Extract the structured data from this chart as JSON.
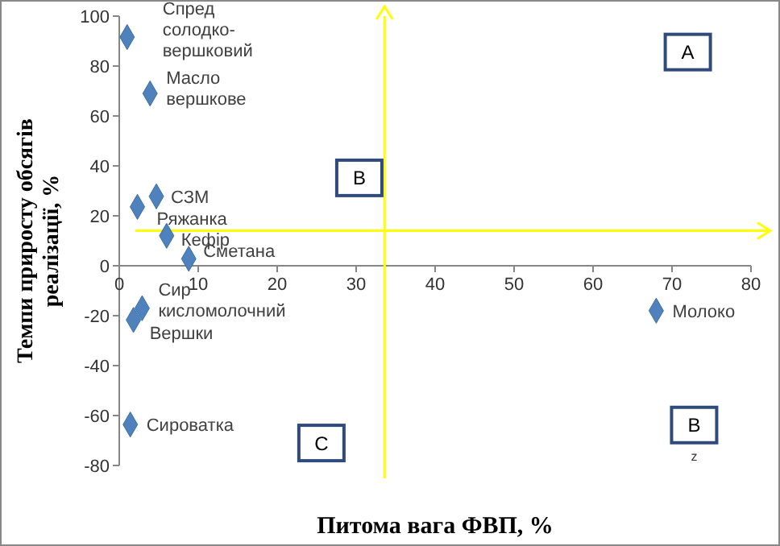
{
  "chart_data": {
    "type": "scatter",
    "xlabel": "Питома вага ФВП, %",
    "ylabel": "Темпи приросту обсягів реалізації, %",
    "series": [
      {
        "color": "#4f81bd",
        "x": [
          1,
          3.9,
          4.7,
          2.3,
          6,
          8.8,
          2.9,
          1.8,
          1.4,
          68
        ],
        "values": [
          91.6,
          69,
          27.8,
          23.6,
          12,
          2.8,
          -17,
          -21.7,
          -63.6,
          -18
        ]
      }
    ],
    "annotations": [
      {
        "text": "Спред солодко-вершковий",
        "x": 1,
        "y": 91.6
      },
      {
        "text": "Масло вершкове",
        "x": 3.9,
        "y": 69
      },
      {
        "text": "СЗМ",
        "x": 4.7,
        "y": 27.8
      },
      {
        "text": "Ряжанка",
        "x": 2.3,
        "y": 23.6
      },
      {
        "text": "Кефір",
        "x": 6,
        "y": 12
      },
      {
        "text": "Сметана",
        "x": 8.8,
        "y": 2.8
      },
      {
        "text": "Сир кисломолочний",
        "x": 2.9,
        "y": -17
      },
      {
        "text": "Вершки",
        "x": 1.8,
        "y": -21.7
      },
      {
        "text": "Сироватка",
        "x": 1.4,
        "y": -63.6
      },
      {
        "text": "Молоко",
        "x": 68,
        "y": -18
      },
      "А",
      "В",
      "С",
      "В",
      "z"
    ],
    "ref_lines": [
      {
        "axis": "x",
        "value": 33.6,
        "color": "#ffff00"
      },
      {
        "axis": "y",
        "value": 14,
        "color": "#ffff00"
      }
    ],
    "xlim": [
      0,
      80
    ],
    "xticks": [
      0,
      10,
      20,
      30,
      40,
      50,
      60,
      70,
      80
    ],
    "ylim": [
      -80,
      100
    ],
    "yticks": [
      -80,
      -60,
      -40,
      -20,
      0,
      20,
      40,
      60,
      80,
      100
    ],
    "marker": "diamond",
    "grid": false
  }
}
